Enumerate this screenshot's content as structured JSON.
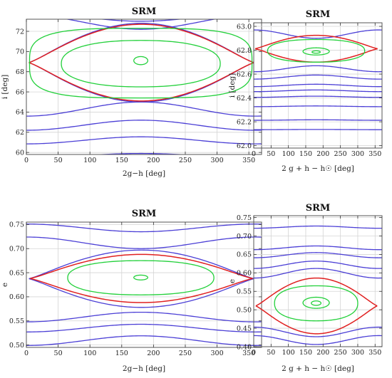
{
  "colors": {
    "separatrix": "#e02020",
    "libration": "#22d03a",
    "circulation": "#4b3fd6",
    "grid": "#d4d4d4",
    "frame": "#555555"
  },
  "chart_data": [
    {
      "type": "line",
      "title": "SRM",
      "xlabel": "2g−h [deg]",
      "ylabel": "i [deg]",
      "xlim": [
        0,
        370
      ],
      "ylim": [
        59.8,
        73.2
      ],
      "xticks": [
        0,
        50,
        100,
        150,
        200,
        250,
        300,
        350
      ],
      "yticks": [
        60,
        62,
        64,
        66,
        68,
        70,
        72
      ],
      "xtick_labels": [
        "0",
        "50",
        "100",
        "150",
        "200",
        "250",
        "300",
        "350"
      ],
      "ytick_labels": [
        "60",
        "62",
        "64",
        "66",
        "68",
        "70",
        "72"
      ],
      "grid": true,
      "center": [
        180,
        69.1
      ],
      "circulating": [
        {
          "center": 73.4,
          "amplitude": 0.4,
          "sign": -1
        },
        {
          "center": 72.9,
          "amplitude": 0.7,
          "sign": -1
        },
        {
          "center": 64.3,
          "amplitude": 0.7,
          "sign": 1
        },
        {
          "center": 62.7,
          "amplitude": 0.5,
          "sign": 1
        },
        {
          "center": 61.2,
          "amplitude": 0.35,
          "sign": 1
        },
        {
          "center": 59.7,
          "amplitude": 0.2,
          "sign": 1
        }
      ],
      "separatrix": {
        "top": 72.7,
        "bottom": 65.1,
        "xmin": 4,
        "xmax": 358,
        "width": 350
      },
      "extra_circulating": [
        {
          "top": 72.8,
          "bottom": 65.0,
          "xmin": 4,
          "xmax": 358,
          "width": 350,
          "open": true
        }
      ],
      "librating": [
        {
          "rx": 175,
          "top": 72.3,
          "bottom": 65.4,
          "p": 3.5
        },
        {
          "rx": 125,
          "top": 71.1,
          "bottom": 66.5,
          "p": 2.3
        },
        {
          "rx": 11,
          "top": 69.5,
          "bottom": 68.7,
          "p": 2
        }
      ]
    },
    {
      "type": "line",
      "title": "SRM",
      "xlabel": "2 g + h − h☉ [deg]",
      "ylabel": "i [deg]",
      "xlim": [
        0,
        370
      ],
      "ylim": [
        61.98,
        63.03
      ],
      "xticks": [
        0,
        50,
        100,
        150,
        200,
        250,
        300,
        350
      ],
      "yticks": [
        62.0,
        62.2,
        62.4,
        62.6,
        62.8,
        63.0
      ],
      "xtick_labels": [
        "0",
        "50",
        "100",
        "150",
        "200",
        "250",
        "300",
        "350"
      ],
      "ytick_labels": [
        "62.0",
        "62.2",
        "62.4",
        "62.6",
        "62.8",
        "63.0"
      ],
      "grid": true,
      "center": [
        180,
        62.785
      ],
      "circulating": [
        {
          "center": 62.935,
          "amplitude": 0.035,
          "sign": -1
        },
        {
          "center": 62.645,
          "amplitude": 0.025,
          "sign": 1
        },
        {
          "center": 62.575,
          "amplitude": 0.017,
          "sign": 1
        },
        {
          "center": 62.505,
          "amplitude": 0.01,
          "sign": 1
        },
        {
          "center": 62.46,
          "amplitude": 0.007,
          "sign": 1
        },
        {
          "center": 62.41,
          "amplitude": 0.005,
          "sign": 1
        },
        {
          "center": 62.33,
          "amplitude": 0.003,
          "sign": 1
        },
        {
          "center": 62.215,
          "amplitude": 0.002,
          "sign": 1
        },
        {
          "center": 62.135,
          "amplitude": 0.001,
          "sign": 1
        }
      ],
      "separatrix": {
        "top": 62.925,
        "bottom": 62.7,
        "xmin": 4,
        "xmax": 357,
        "width": 355
      },
      "librating": [
        {
          "rx": 140,
          "top": 62.89,
          "bottom": 62.7,
          "p": 2.3
        },
        {
          "rx": 38,
          "top": 62.82,
          "bottom": 62.76,
          "p": 2
        },
        {
          "rx": 12,
          "top": 62.795,
          "bottom": 62.775,
          "p": 2
        }
      ]
    },
    {
      "type": "line",
      "title": "SRM",
      "xlabel": "2g−h [deg]",
      "ylabel": "e",
      "xlim": [
        0,
        370
      ],
      "ylim": [
        0.495,
        0.755
      ],
      "xticks": [
        0,
        50,
        100,
        150,
        200,
        250,
        300,
        350
      ],
      "yticks": [
        0.5,
        0.55,
        0.6,
        0.65,
        0.7,
        0.75
      ],
      "xtick_labels": [
        "0",
        "50",
        "100",
        "150",
        "200",
        "250",
        "300",
        "350"
      ],
      "ytick_labels": [
        "0.50",
        "0.55",
        "0.60",
        "0.65",
        "0.70",
        "0.75"
      ],
      "grid": true,
      "center": [
        180,
        0.64
      ],
      "circulating": [
        {
          "center": 0.743,
          "amplitude": 0.008,
          "sign": -1
        },
        {
          "center": 0.712,
          "amplitude": 0.012,
          "sign": -1
        },
        {
          "center": 0.558,
          "amplitude": 0.01,
          "sign": 1
        },
        {
          "center": 0.535,
          "amplitude": 0.008,
          "sign": 1
        },
        {
          "center": 0.509,
          "amplitude": 0.01,
          "sign": 1
        }
      ],
      "separatrix": {
        "top": 0.688,
        "bottom": 0.588,
        "xmin": 6,
        "xmax": 356,
        "width": 340
      },
      "extra_circulating": [
        {
          "top": 0.697,
          "bottom": 0.578,
          "xmin": 4,
          "xmax": 358,
          "width": 350,
          "open": true
        }
      ],
      "librating": [
        {
          "rx": 115,
          "top": 0.675,
          "bottom": 0.604,
          "p": 2.3
        },
        {
          "rx": 11,
          "top": 0.645,
          "bottom": 0.635,
          "p": 2
        }
      ]
    },
    {
      "type": "line",
      "title": "SRM",
      "xlabel": "2 g + h − h☉ [deg]",
      "ylabel": "e",
      "xlim": [
        0,
        370
      ],
      "ylim": [
        0.4,
        0.755
      ],
      "xticks": [
        0,
        50,
        100,
        150,
        200,
        250,
        300,
        350
      ],
      "yticks": [
        0.4,
        0.45,
        0.5,
        0.55,
        0.6,
        0.65,
        0.7,
        0.75
      ],
      "xtick_labels": [
        "0",
        "50",
        "100",
        "150",
        "200",
        "250",
        "300",
        "350"
      ],
      "ytick_labels": [
        "0.40",
        "0.45",
        "0.50",
        "0.55",
        "0.60",
        "0.65",
        "0.70",
        "0.75"
      ],
      "grid": true,
      "center": [
        180,
        0.518
      ],
      "circulating": [
        {
          "center": 0.724,
          "amplitude": 0.003,
          "sign": 1
        },
        {
          "center": 0.668,
          "amplitude": 0.005,
          "sign": 1
        },
        {
          "center": 0.648,
          "amplitude": 0.007,
          "sign": 1
        },
        {
          "center": 0.622,
          "amplitude": 0.01,
          "sign": 1
        },
        {
          "center": 0.599,
          "amplitude": 0.013,
          "sign": 1
        },
        {
          "center": 0.44,
          "amplitude": 0.013,
          "sign": -1
        },
        {
          "center": 0.418,
          "amplitude": 0.012,
          "sign": -1
        }
      ],
      "separatrix": {
        "top": 0.586,
        "bottom": 0.435,
        "xmin": 6,
        "xmax": 356,
        "width": 345
      },
      "librating": [
        {
          "rx": 120,
          "top": 0.565,
          "bottom": 0.47,
          "p": 2.3
        },
        {
          "rx": 38,
          "top": 0.534,
          "bottom": 0.504,
          "p": 2
        },
        {
          "rx": 14,
          "top": 0.524,
          "bottom": 0.512,
          "p": 2
        }
      ]
    }
  ]
}
